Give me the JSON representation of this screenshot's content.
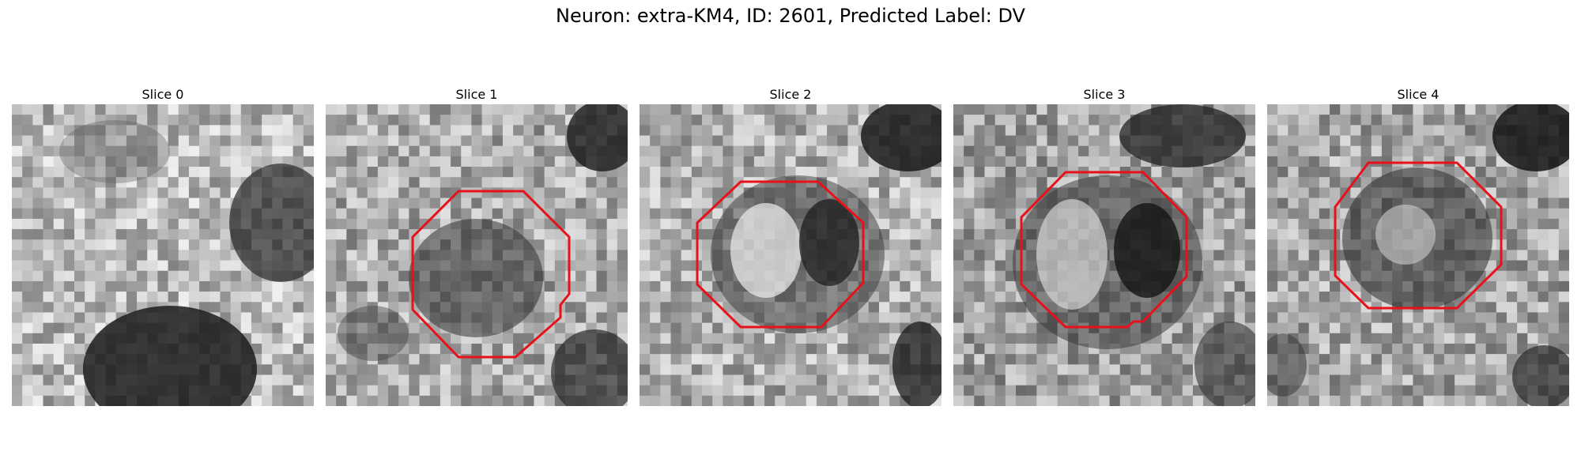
{
  "figure": {
    "title": "Neuron: extra-KM4, ID: 2601, Predicted Label: DV"
  },
  "panels": [
    {
      "title": "Slice 0",
      "has_outline": false
    },
    {
      "title": "Slice 1",
      "has_outline": true
    },
    {
      "title": "Slice 2",
      "has_outline": true
    },
    {
      "title": "Slice 3",
      "has_outline": true
    },
    {
      "title": "Slice 4",
      "has_outline": true
    }
  ],
  "colors": {
    "outline": "#e8111a",
    "background": "#ffffff"
  }
}
